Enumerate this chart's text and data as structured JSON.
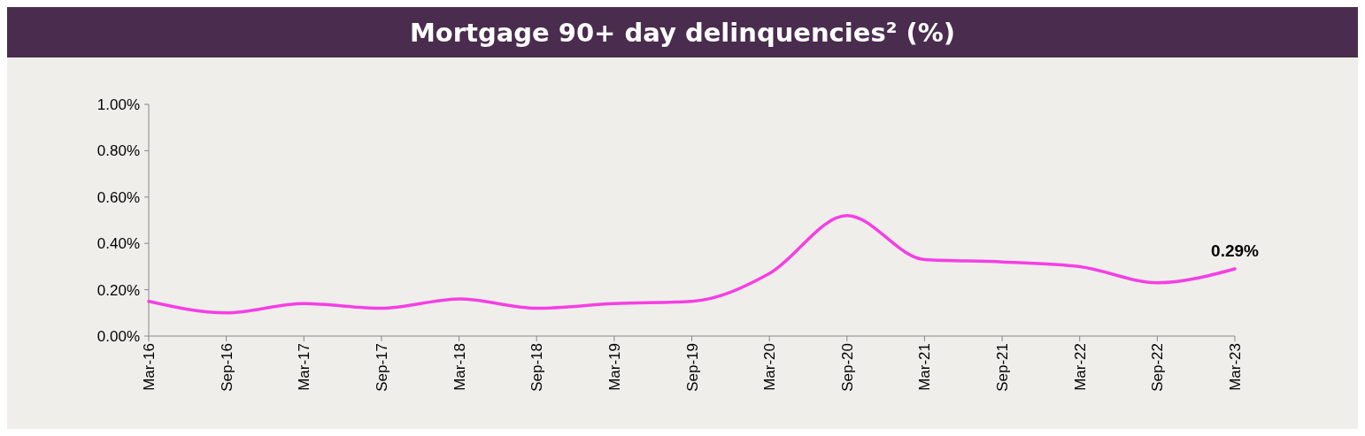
{
  "chart_data": {
    "type": "line",
    "title": "Mortgage 90+ day delinquencies² (%)",
    "categories": [
      "Mar-16",
      "Sep-16",
      "Mar-17",
      "Sep-17",
      "Mar-18",
      "Sep-18",
      "Mar-19",
      "Sep-19",
      "Mar-20",
      "Sep-20",
      "Mar-21",
      "Sep-21",
      "Mar-22",
      "Sep-22",
      "Mar-23"
    ],
    "series": [
      {
        "color": "#f53fe4",
        "values": [
          0.15,
          0.1,
          0.14,
          0.12,
          0.16,
          0.12,
          0.14,
          0.15,
          0.27,
          0.52,
          0.33,
          0.32,
          0.3,
          0.23,
          0.29
        ],
        "value_labels": [
          null,
          null,
          null,
          null,
          null,
          null,
          null,
          null,
          null,
          null,
          null,
          null,
          null,
          null,
          "0.29%"
        ]
      }
    ],
    "ylim": [
      0,
      1
    ],
    "yticks": [
      {
        "value": 0,
        "label": "0.00%"
      },
      {
        "value": 0.2,
        "label": "0.20%"
      },
      {
        "value": 0.4,
        "label": "0.40%"
      },
      {
        "value": 0.6,
        "label": "0.60%"
      },
      {
        "value": 0.8,
        "label": "0.80%"
      },
      {
        "value": 1,
        "label": "1.00%"
      }
    ],
    "marker": "none",
    "line_style": "solid"
  }
}
